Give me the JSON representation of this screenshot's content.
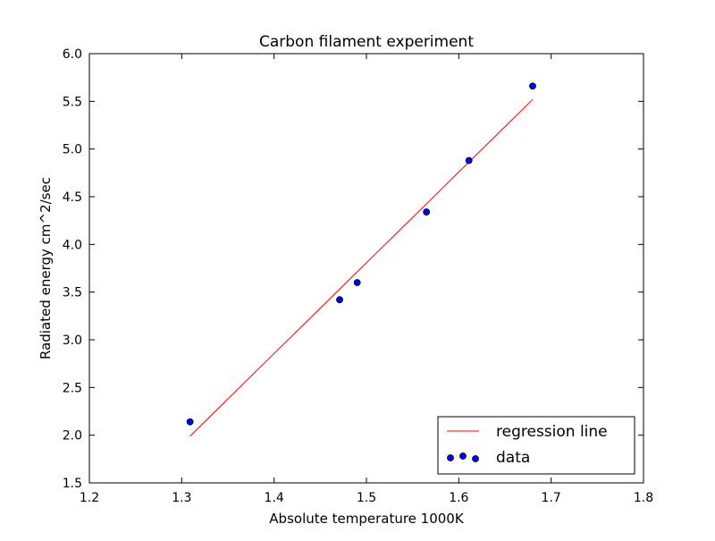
{
  "chart_data": {
    "type": "scatter",
    "title": "Carbon filament experiment",
    "xlabel": "Absolute temperature 1000K",
    "ylabel": "Radiated energy cm^2/sec",
    "xlim": [
      1.2,
      1.8
    ],
    "ylim": [
      1.5,
      6.0
    ],
    "x_ticks": [
      "1.2",
      "1.3",
      "1.4",
      "1.5",
      "1.6",
      "1.7",
      "1.8"
    ],
    "y_ticks": [
      "1.5",
      "2.0",
      "2.5",
      "3.0",
      "3.5",
      "4.0",
      "4.5",
      "5.0",
      "5.5",
      "6.0"
    ],
    "grid": false,
    "legend_position": "lower-right",
    "series": [
      {
        "name": "regression line",
        "kind": "line",
        "color": "#ff0000",
        "x": [
          1.309,
          1.68
        ],
        "y": [
          1.99,
          5.52
        ]
      },
      {
        "name": "data",
        "kind": "scatter",
        "color": "#0000ff",
        "x": [
          1.309,
          1.471,
          1.49,
          1.565,
          1.611,
          1.68
        ],
        "y": [
          2.14,
          3.42,
          3.6,
          4.34,
          4.88,
          5.66
        ]
      }
    ]
  }
}
